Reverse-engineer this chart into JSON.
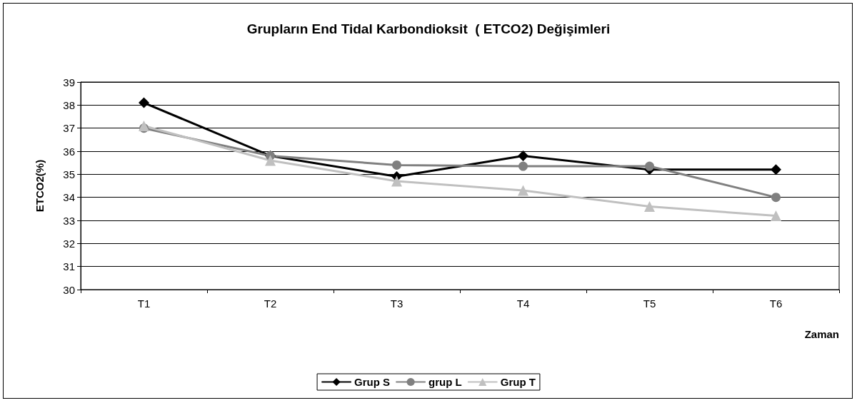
{
  "chart_data": {
    "type": "line",
    "title": "Grupların End Tidal Karbondioksit  ( ETCO2) Değişimleri",
    "xlabel": "Zaman",
    "ylabel": "ETCO2(%)",
    "categories": [
      "T1",
      "T2",
      "T3",
      "T4",
      "T5",
      "T6"
    ],
    "series": [
      {
        "name": "Grup S",
        "color": "#000000",
        "marker": "diamond",
        "values": [
          38.1,
          35.8,
          34.9,
          35.8,
          35.2,
          35.2
        ]
      },
      {
        "name": "grup L",
        "color": "#808080",
        "marker": "circle",
        "values": [
          37.0,
          35.8,
          35.4,
          35.35,
          35.35,
          34.0
        ]
      },
      {
        "name": "Grup T",
        "color": "#c0c0c0",
        "marker": "triangle",
        "values": [
          37.1,
          35.6,
          34.7,
          34.3,
          33.6,
          33.2
        ]
      }
    ],
    "ylim": [
      30,
      39
    ],
    "yticks": [
      30,
      31,
      32,
      33,
      34,
      35,
      36,
      37,
      38,
      39
    ],
    "grid": "y",
    "legend": "bottom",
    "line_style": "solid"
  }
}
